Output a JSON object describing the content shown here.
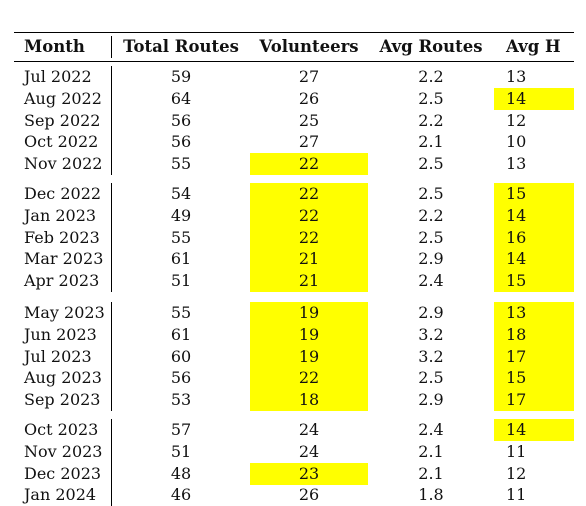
{
  "headers": [
    "Month",
    "Total Routes",
    "Volunteers",
    "Avg Routes",
    "Avg H"
  ],
  "highlight_color": "#ffff00",
  "groups": [
    {
      "rows": [
        {
          "month": "Jul 2022",
          "total_routes": "59",
          "volunteers": "27",
          "avg_routes": "2.2",
          "avg_h": "13",
          "hl_vol": false,
          "hl_h": false
        },
        {
          "month": "Aug 2022",
          "total_routes": "64",
          "volunteers": "26",
          "avg_routes": "2.5",
          "avg_h": "14",
          "hl_vol": false,
          "hl_h": true
        },
        {
          "month": "Sep 2022",
          "total_routes": "56",
          "volunteers": "25",
          "avg_routes": "2.2",
          "avg_h": "12",
          "hl_vol": false,
          "hl_h": false
        },
        {
          "month": "Oct 2022",
          "total_routes": "56",
          "volunteers": "27",
          "avg_routes": "2.1",
          "avg_h": "10",
          "hl_vol": false,
          "hl_h": false
        },
        {
          "month": "Nov 2022",
          "total_routes": "55",
          "volunteers": "22",
          "avg_routes": "2.5",
          "avg_h": "13",
          "hl_vol": true,
          "hl_h": false
        }
      ]
    },
    {
      "rows": [
        {
          "month": "Dec 2022",
          "total_routes": "54",
          "volunteers": "22",
          "avg_routes": "2.5",
          "avg_h": "15",
          "hl_vol": true,
          "hl_h": true
        },
        {
          "month": "Jan 2023",
          "total_routes": "49",
          "volunteers": "22",
          "avg_routes": "2.2",
          "avg_h": "14",
          "hl_vol": true,
          "hl_h": true
        },
        {
          "month": "Feb 2023",
          "total_routes": "55",
          "volunteers": "22",
          "avg_routes": "2.5",
          "avg_h": "16",
          "hl_vol": true,
          "hl_h": true
        },
        {
          "month": "Mar 2023",
          "total_routes": "61",
          "volunteers": "21",
          "avg_routes": "2.9",
          "avg_h": "14",
          "hl_vol": true,
          "hl_h": true
        },
        {
          "month": "Apr 2023",
          "total_routes": "51",
          "volunteers": "21",
          "avg_routes": "2.4",
          "avg_h": "15",
          "hl_vol": true,
          "hl_h": true
        }
      ]
    },
    {
      "rows": [
        {
          "month": "May 2023",
          "total_routes": "55",
          "volunteers": "19",
          "avg_routes": "2.9",
          "avg_h": "13",
          "hl_vol": true,
          "hl_h": true
        },
        {
          "month": "Jun 2023",
          "total_routes": "61",
          "volunteers": "19",
          "avg_routes": "3.2",
          "avg_h": "18",
          "hl_vol": true,
          "hl_h": true
        },
        {
          "month": "Jul 2023",
          "total_routes": "60",
          "volunteers": "19",
          "avg_routes": "3.2",
          "avg_h": "17",
          "hl_vol": true,
          "hl_h": true
        },
        {
          "month": "Aug 2023",
          "total_routes": "56",
          "volunteers": "22",
          "avg_routes": "2.5",
          "avg_h": "15",
          "hl_vol": true,
          "hl_h": true
        },
        {
          "month": "Sep 2023",
          "total_routes": "53",
          "volunteers": "18",
          "avg_routes": "2.9",
          "avg_h": "17",
          "hl_vol": true,
          "hl_h": true
        }
      ]
    },
    {
      "rows": [
        {
          "month": "Oct 2023",
          "total_routes": "57",
          "volunteers": "24",
          "avg_routes": "2.4",
          "avg_h": "14",
          "hl_vol": false,
          "hl_h": true
        },
        {
          "month": "Nov 2023",
          "total_routes": "51",
          "volunteers": "24",
          "avg_routes": "2.1",
          "avg_h": "11",
          "hl_vol": false,
          "hl_h": false
        },
        {
          "month": "Dec 2023",
          "total_routes": "48",
          "volunteers": "23",
          "avg_routes": "2.1",
          "avg_h": "12",
          "hl_vol": true,
          "hl_h": false
        },
        {
          "month": "Jan 2024",
          "total_routes": "46",
          "volunteers": "26",
          "avg_routes": "1.8",
          "avg_h": "11",
          "hl_vol": false,
          "hl_h": false
        }
      ]
    }
  ]
}
